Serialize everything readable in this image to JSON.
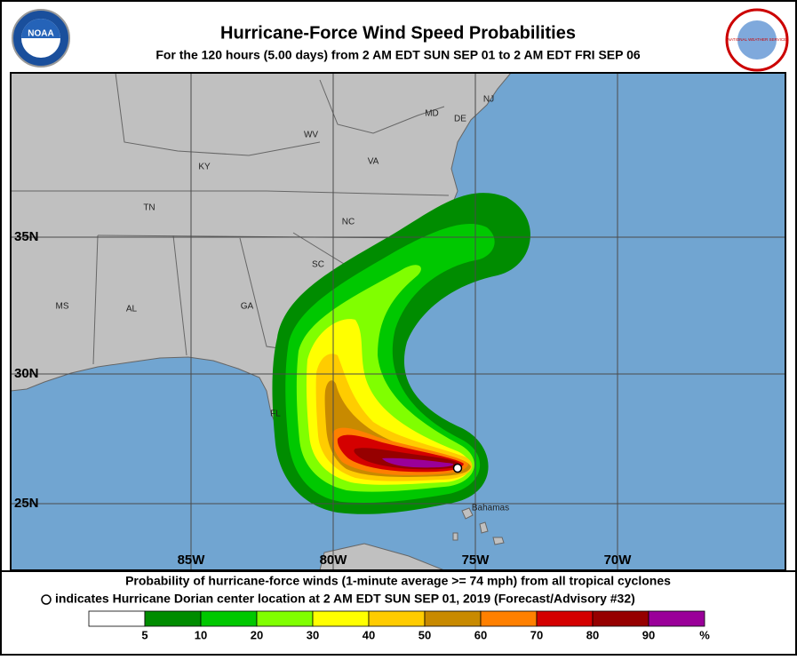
{
  "header": {
    "title": "Hurricane-Force Wind Speed Probabilities",
    "subtitle": "For the 120 hours (5.00 days) from 2 AM EDT SUN SEP 01 to 2 AM EDT FRI SEP 06",
    "left_logo": "NOAA",
    "right_logo": "NATIONAL WEATHER SERVICE"
  },
  "map": {
    "regions": [
      "KY",
      "WV",
      "VA",
      "NC",
      "TN",
      "SC",
      "GA",
      "AL",
      "MS",
      "FL",
      "MD",
      "DE",
      "NJ",
      "Bahamas"
    ],
    "latitudes": [
      "35N",
      "30N",
      "25N"
    ],
    "longitudes": [
      "85W",
      "80W",
      "75W",
      "70W"
    ]
  },
  "footer": {
    "line1": "Probability of hurricane-force winds (1-minute average >= 74 mph) from all tropical cyclones",
    "line2": "indicates Hurricane Dorian center location at 2 AM EDT SUN SEP 01, 2019 (Forecast/Advisory #32)"
  },
  "legend": {
    "colors": [
      "#ffffff",
      "#008c00",
      "#00c800",
      "#80ff00",
      "#ffff00",
      "#ffcc00",
      "#c88a00",
      "#ff8000",
      "#d40000",
      "#960000",
      "#9a0099"
    ],
    "ticks": [
      "5",
      "10",
      "20",
      "30",
      "40",
      "50",
      "60",
      "70",
      "80",
      "90"
    ],
    "unit": "%"
  }
}
